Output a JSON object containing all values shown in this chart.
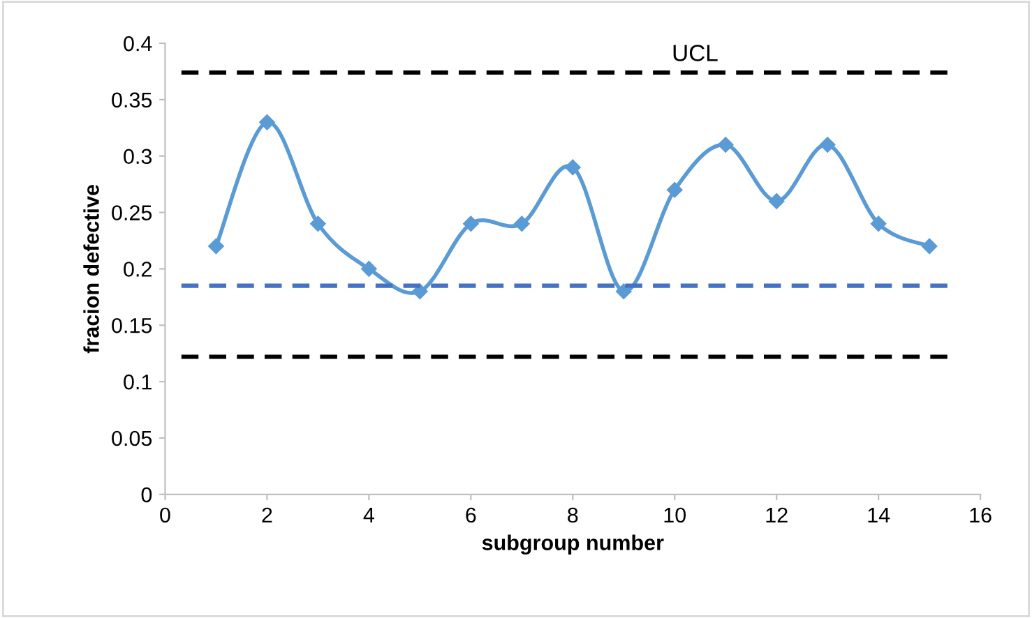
{
  "chart_data": {
    "type": "line",
    "xlabel": "subgroup number",
    "ylabel": "fracion defective",
    "x": [
      1,
      2,
      3,
      4,
      5,
      6,
      7,
      8,
      9,
      10,
      11,
      12,
      13,
      14,
      15
    ],
    "series": [
      {
        "color": "#5b9bd5",
        "values": [
          0.22,
          0.33,
          0.24,
          0.2,
          0.18,
          0.24,
          0.24,
          0.29,
          0.18,
          0.27,
          0.31,
          0.26,
          0.31,
          0.24,
          0.22
        ]
      }
    ],
    "marker": "diamond",
    "line_style": "solid",
    "xlim": [
      0,
      16
    ],
    "xticks": [
      0,
      2,
      4,
      6,
      8,
      10,
      12,
      14,
      16
    ],
    "ylim": [
      0,
      0.4
    ],
    "yticks": [
      0,
      0.05,
      0.1,
      0.15,
      0.2,
      0.25,
      0.3,
      0.35,
      0.4
    ],
    "ref_lines": [
      {
        "axis": "y",
        "value": 0.374,
        "label": "UCL",
        "color": "#000000",
        "line_style": "dashed"
      },
      {
        "axis": "y",
        "value": 0.185,
        "color": "#4472c4",
        "line_style": "dashed"
      },
      {
        "axis": "y",
        "value": 0.122,
        "color": "#000000",
        "line_style": "dashed"
      }
    ],
    "grid": false
  }
}
